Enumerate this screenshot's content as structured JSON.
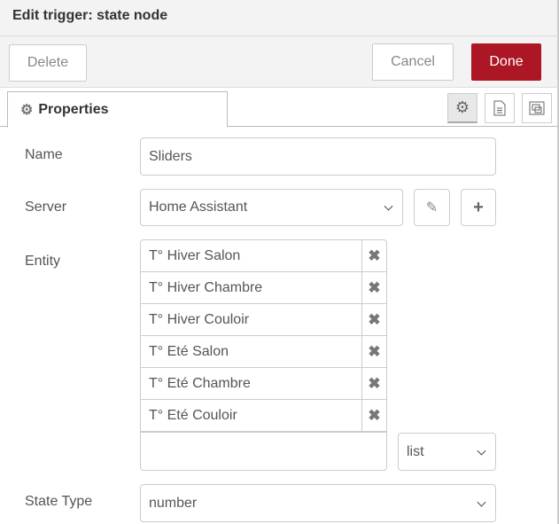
{
  "dialog": {
    "title": "Edit trigger: state node"
  },
  "toolbar": {
    "delete": "Delete",
    "cancel": "Cancel",
    "done": "Done"
  },
  "tabs": {
    "properties": "Properties"
  },
  "form": {
    "name_label": "Name",
    "name_value": "Sliders",
    "server_label": "Server",
    "server_value": "Home Assistant",
    "entity_label": "Entity",
    "entities": [
      "T° Hiver Salon",
      "T° Hiver Chambre",
      "T° Hiver Couloir",
      "T° Eté Salon",
      "T° Eté Chambre",
      "T° Eté Couloir"
    ],
    "entity_input_value": "",
    "entity_mode": "list",
    "state_type_label": "State Type",
    "state_type_value": "number"
  },
  "colors": {
    "done": "#ad1625"
  }
}
